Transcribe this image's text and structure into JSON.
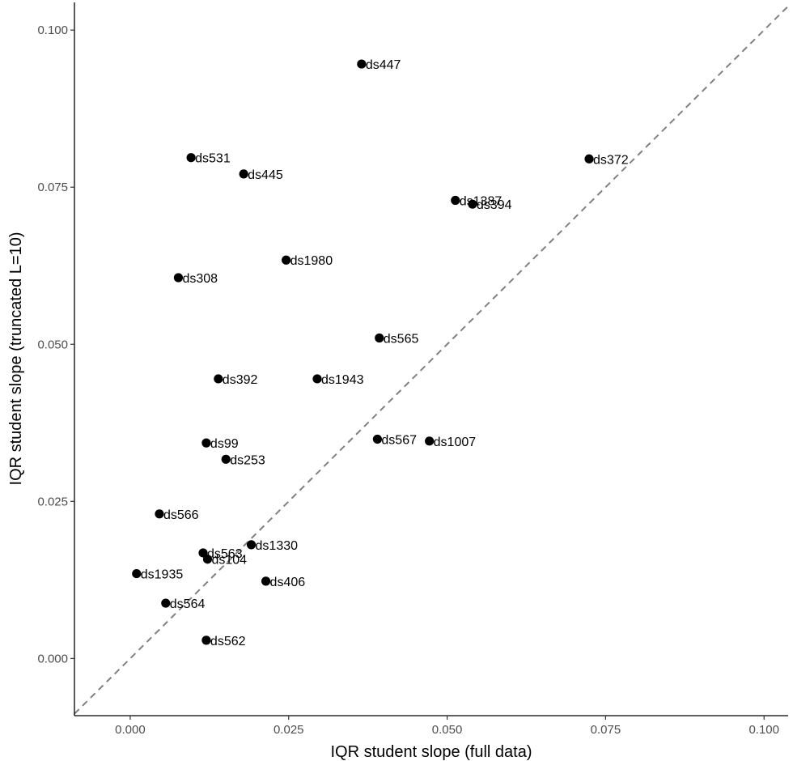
{
  "chart_data": {
    "type": "scatter",
    "xlabel": "IQR student slope (full data)",
    "ylabel": "IQR student slope (truncated L=10)",
    "xlim": [
      -0.0088,
      0.1038
    ],
    "ylim": [
      -0.0091,
      0.1044
    ],
    "x_ticks": [
      0.0,
      0.025,
      0.05,
      0.075,
      0.1
    ],
    "x_tick_labels": [
      "0.000",
      "0.025",
      "0.050",
      "0.075",
      "0.100"
    ],
    "y_ticks": [
      0.0,
      0.025,
      0.05,
      0.075,
      0.1
    ],
    "y_tick_labels": [
      "0.000",
      "0.025",
      "0.050",
      "0.075",
      "0.100"
    ],
    "reference_line": "y = x (dashed, gray)",
    "grid": false,
    "point_color": "#000000",
    "reference_line_color": "#808080",
    "points": [
      {
        "label": "ds447",
        "x": 0.0365,
        "y": 0.0946
      },
      {
        "label": "ds531",
        "x": 0.0096,
        "y": 0.0797
      },
      {
        "label": "ds445",
        "x": 0.0179,
        "y": 0.0771
      },
      {
        "label": "ds372",
        "x": 0.0724,
        "y": 0.0795
      },
      {
        "label": "ds1387",
        "x": 0.0513,
        "y": 0.0729
      },
      {
        "label": "ds394",
        "x": 0.054,
        "y": 0.0723
      },
      {
        "label": "ds1980",
        "x": 0.0246,
        "y": 0.0634
      },
      {
        "label": "ds308",
        "x": 0.0076,
        "y": 0.0606
      },
      {
        "label": "ds565",
        "x": 0.0393,
        "y": 0.051
      },
      {
        "label": "ds392",
        "x": 0.0139,
        "y": 0.0445
      },
      {
        "label": "ds1943",
        "x": 0.0295,
        "y": 0.0445
      },
      {
        "label": "ds567",
        "x": 0.039,
        "y": 0.0349
      },
      {
        "label": "ds1007",
        "x": 0.0472,
        "y": 0.0346
      },
      {
        "label": "ds99",
        "x": 0.012,
        "y": 0.0343
      },
      {
        "label": "ds253",
        "x": 0.0151,
        "y": 0.0317
      },
      {
        "label": "ds566",
        "x": 0.0046,
        "y": 0.023
      },
      {
        "label": "ds1330",
        "x": 0.0191,
        "y": 0.0181
      },
      {
        "label": "ds563",
        "x": 0.0115,
        "y": 0.0168
      },
      {
        "label": "ds104",
        "x": 0.0122,
        "y": 0.0158
      },
      {
        "label": "ds1935",
        "x": 0.001,
        "y": 0.0135
      },
      {
        "label": "ds406",
        "x": 0.0214,
        "y": 0.0123
      },
      {
        "label": "ds564",
        "x": 0.0056,
        "y": 0.0088
      },
      {
        "label": "ds562",
        "x": 0.012,
        "y": 0.0029
      }
    ]
  }
}
